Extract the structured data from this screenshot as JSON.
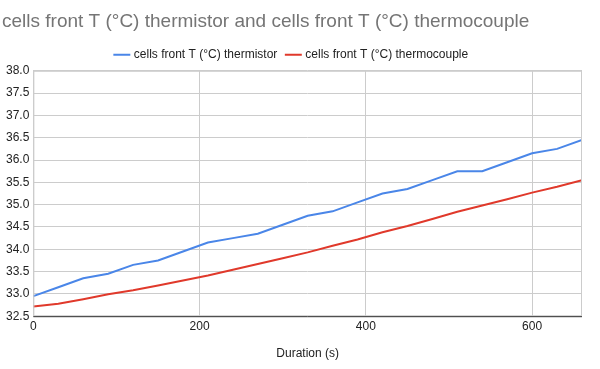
{
  "chart_data": {
    "type": "line",
    "title": "cells front T (°C) thermistor and cells front T (°C) thermocouple",
    "xlabel": "Duration (s)",
    "x": [
      0,
      30,
      60,
      90,
      120,
      150,
      180,
      210,
      240,
      270,
      300,
      330,
      360,
      390,
      420,
      450,
      480,
      510,
      540,
      570,
      600,
      630,
      660
    ],
    "series": [
      {
        "name": "cells front T (°C) thermistor",
        "color": "#4a86e8",
        "values": [
          32.95,
          33.15,
          33.35,
          33.45,
          33.65,
          33.75,
          33.95,
          34.15,
          34.25,
          34.35,
          34.55,
          34.75,
          34.85,
          35.05,
          35.25,
          35.35,
          35.55,
          35.75,
          35.75,
          35.95,
          36.15,
          36.25,
          36.45
        ]
      },
      {
        "name": "cells front T (°C) thermocouple",
        "color": "#e0392b",
        "values": [
          32.72,
          32.78,
          32.88,
          32.99,
          33.08,
          33.19,
          33.3,
          33.41,
          33.54,
          33.67,
          33.8,
          33.93,
          34.08,
          34.22,
          34.38,
          34.52,
          34.68,
          34.84,
          34.98,
          35.12,
          35.27,
          35.4,
          35.55
        ]
      }
    ],
    "xlim": [
      0,
      660
    ],
    "xticks": [
      0,
      200,
      400,
      600
    ],
    "ylim": [
      32.5,
      38
    ],
    "yticks": [
      32.5,
      {
        "value": 33,
        "label": "33.0"
      },
      33.5,
      {
        "value": 34,
        "label": "34.0"
      },
      34.5,
      {
        "value": 35,
        "label": "35.0"
      },
      35.5,
      {
        "value": 36,
        "label": "36.0"
      },
      36.5,
      {
        "value": 37,
        "label": "37.0"
      },
      37.5,
      {
        "value": 38,
        "label": "38.0"
      }
    ],
    "grid": true,
    "legend": "top"
  }
}
